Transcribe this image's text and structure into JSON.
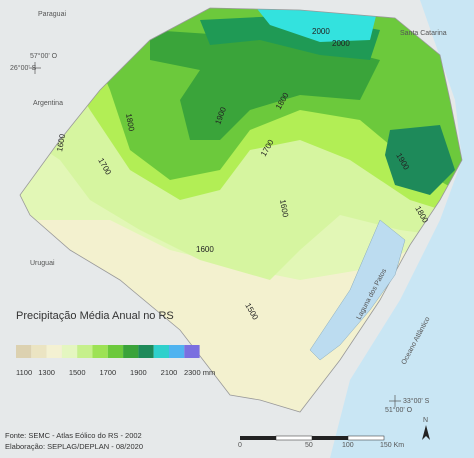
{
  "places": [
    "Paraguai",
    "Santa Catarina",
    "Argentina",
    "Uruguai",
    "Laguna dos Patos",
    "Oceano Atlântico"
  ],
  "coordinates": [
    "57°00' O",
    "26°00' S",
    "33°00' S",
    "51°00' O"
  ],
  "contours": [
    "2000",
    "2000",
    "1800",
    "1900",
    "1800",
    "1600",
    "1700",
    "1700",
    "1600",
    "1900",
    "1800",
    "1600",
    "1500"
  ],
  "legend": {
    "title": "Precipitação Média Anual no RS",
    "labels": [
      "1100",
      "1300",
      "1500",
      "1700",
      "1900",
      "2100",
      "2300 mm"
    ]
  },
  "scale": [
    "0",
    "50",
    "100",
    "150 Km"
  ],
  "north": "N",
  "footer": [
    "Fonte: SEMC - Atlas Eólico do RS - 2002",
    "Elaboração: SEPLAG/DEPLAN - 08/2020"
  ]
}
